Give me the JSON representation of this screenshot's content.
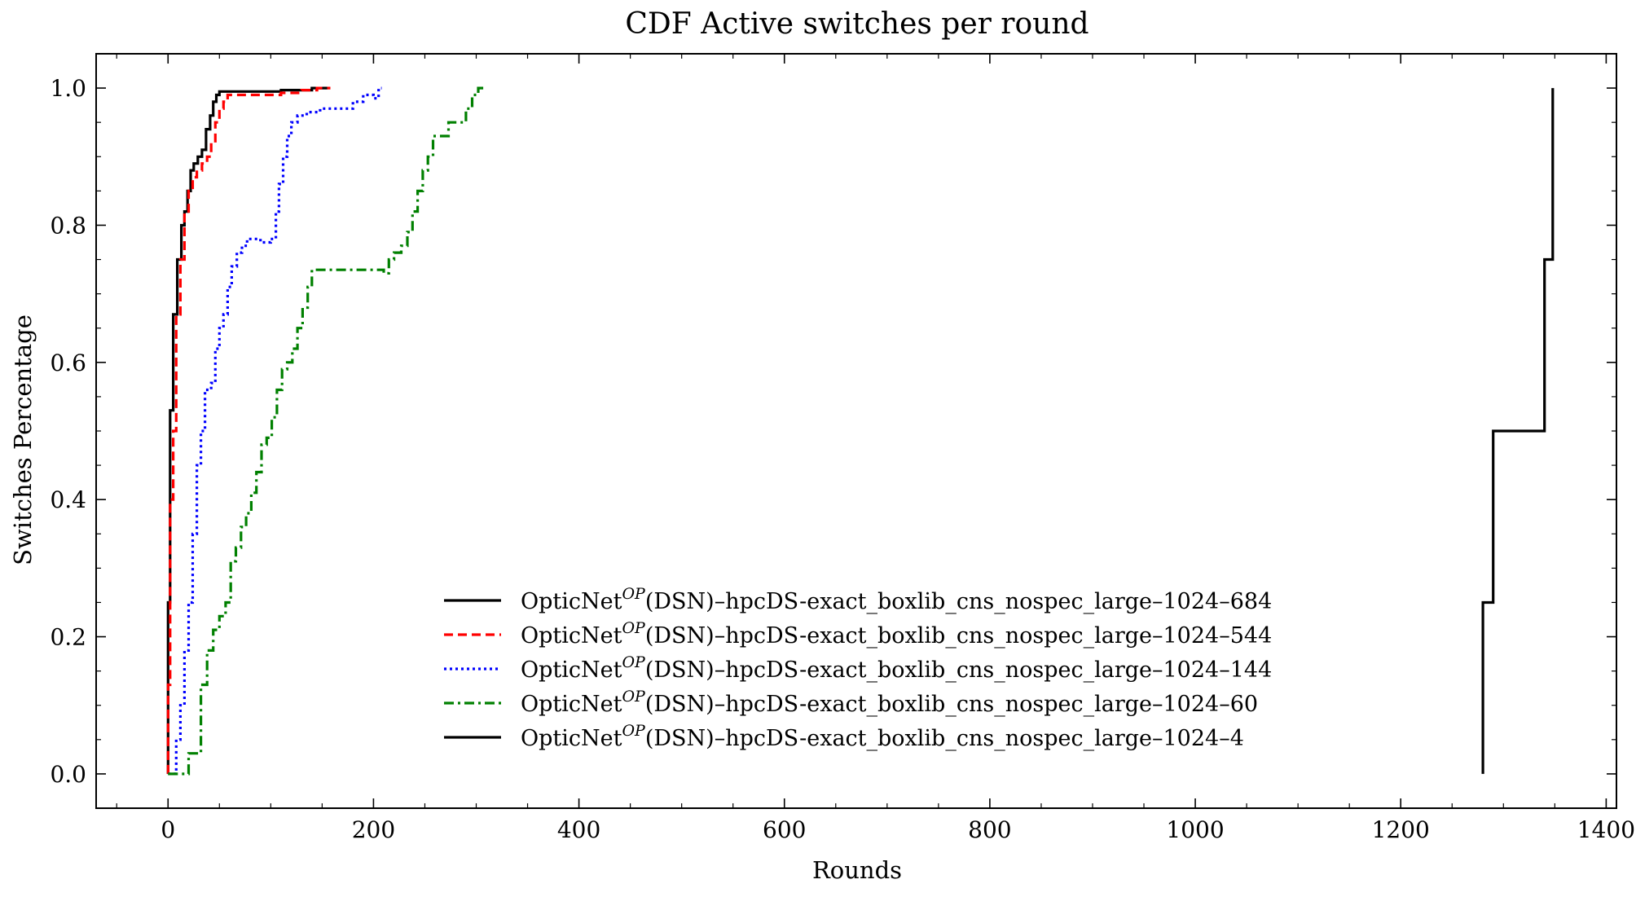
{
  "chart_data": {
    "type": "line",
    "title": "CDF Active switches per round",
    "xlabel": "Rounds",
    "ylabel": "Switches Percentage",
    "xlim": [
      -70,
      1410
    ],
    "ylim": [
      -0.05,
      1.05
    ],
    "xticks": [
      0,
      200,
      400,
      600,
      800,
      1000,
      1200,
      1400
    ],
    "xtick_labels": [
      "0",
      "200",
      "400",
      "600",
      "800",
      "1000",
      "1200",
      "1400"
    ],
    "yticks": [
      0.0,
      0.2,
      0.4,
      0.6,
      0.8,
      1.0
    ],
    "ytick_labels": [
      "0.0",
      "0.2",
      "0.4",
      "0.6",
      "0.8",
      "1.0"
    ],
    "grid": false,
    "legend_position": "lower-center",
    "series": [
      {
        "legend_prefix": "OpticNet",
        "legend_sup": "OP",
        "legend_suffix": "(DSN)–hpcDS-exact_boxlib_cns_nospec_large–1024–684",
        "color": "#000000",
        "dash": "solid",
        "points": [
          [
            0,
            0
          ],
          [
            0,
            0.25
          ],
          [
            2,
            0.25
          ],
          [
            2,
            0.53
          ],
          [
            5,
            0.53
          ],
          [
            5,
            0.67
          ],
          [
            9,
            0.67
          ],
          [
            9,
            0.75
          ],
          [
            13,
            0.75
          ],
          [
            13,
            0.8
          ],
          [
            16,
            0.8
          ],
          [
            16,
            0.82
          ],
          [
            19,
            0.82
          ],
          [
            19,
            0.85
          ],
          [
            22,
            0.85
          ],
          [
            22,
            0.88
          ],
          [
            25,
            0.88
          ],
          [
            25,
            0.89
          ],
          [
            29,
            0.89
          ],
          [
            29,
            0.9
          ],
          [
            33,
            0.9
          ],
          [
            33,
            0.91
          ],
          [
            37,
            0.91
          ],
          [
            37,
            0.94
          ],
          [
            41,
            0.94
          ],
          [
            41,
            0.96
          ],
          [
            44,
            0.96
          ],
          [
            44,
            0.98
          ],
          [
            47,
            0.98
          ],
          [
            47,
            0.99
          ],
          [
            50,
            0.99
          ],
          [
            50,
            0.995
          ],
          [
            60,
            0.995
          ],
          [
            80,
            0.995
          ],
          [
            110,
            0.995
          ],
          [
            110,
            0.997
          ],
          [
            140,
            0.997
          ],
          [
            140,
            1.0
          ],
          [
            155,
            1.0
          ]
        ]
      },
      {
        "legend_prefix": "OpticNet",
        "legend_sup": "OP",
        "legend_suffix": "(DSN)–hpcDS-exact_boxlib_cns_nospec_large–1024–544",
        "color": "#ff0000",
        "dash": "dashed",
        "points": [
          [
            0,
            0
          ],
          [
            0,
            0.13
          ],
          [
            2,
            0.13
          ],
          [
            2,
            0.4
          ],
          [
            5,
            0.4
          ],
          [
            5,
            0.5
          ],
          [
            8,
            0.5
          ],
          [
            8,
            0.67
          ],
          [
            12,
            0.67
          ],
          [
            12,
            0.75
          ],
          [
            16,
            0.75
          ],
          [
            16,
            0.82
          ],
          [
            20,
            0.82
          ],
          [
            20,
            0.85
          ],
          [
            24,
            0.85
          ],
          [
            24,
            0.87
          ],
          [
            28,
            0.87
          ],
          [
            28,
            0.88
          ],
          [
            33,
            0.88
          ],
          [
            33,
            0.89
          ],
          [
            38,
            0.89
          ],
          [
            38,
            0.9
          ],
          [
            42,
            0.9
          ],
          [
            42,
            0.92
          ],
          [
            46,
            0.92
          ],
          [
            46,
            0.95
          ],
          [
            50,
            0.95
          ],
          [
            50,
            0.97
          ],
          [
            54,
            0.97
          ],
          [
            54,
            0.98
          ],
          [
            58,
            0.98
          ],
          [
            58,
            0.99
          ],
          [
            70,
            0.99
          ],
          [
            110,
            0.99
          ],
          [
            110,
            0.993
          ],
          [
            130,
            0.993
          ],
          [
            130,
            0.997
          ],
          [
            145,
            0.997
          ],
          [
            145,
            1.0
          ],
          [
            158,
            1.0
          ]
        ]
      },
      {
        "legend_prefix": "OpticNet",
        "legend_sup": "OP",
        "legend_suffix": "(DSN)–hpcDS-exact_boxlib_cns_nospec_large–1024–144",
        "color": "#0000ff",
        "dash": "dotted",
        "points": [
          [
            0,
            0
          ],
          [
            8,
            0
          ],
          [
            8,
            0.05
          ],
          [
            12,
            0.05
          ],
          [
            12,
            0.1
          ],
          [
            16,
            0.1
          ],
          [
            16,
            0.18
          ],
          [
            20,
            0.18
          ],
          [
            20,
            0.25
          ],
          [
            24,
            0.25
          ],
          [
            24,
            0.35
          ],
          [
            28,
            0.35
          ],
          [
            28,
            0.45
          ],
          [
            32,
            0.45
          ],
          [
            32,
            0.5
          ],
          [
            36,
            0.5
          ],
          [
            36,
            0.56
          ],
          [
            42,
            0.56
          ],
          [
            42,
            0.57
          ],
          [
            46,
            0.57
          ],
          [
            46,
            0.62
          ],
          [
            50,
            0.62
          ],
          [
            50,
            0.65
          ],
          [
            54,
            0.65
          ],
          [
            54,
            0.67
          ],
          [
            58,
            0.67
          ],
          [
            58,
            0.71
          ],
          [
            62,
            0.71
          ],
          [
            62,
            0.74
          ],
          [
            67,
            0.74
          ],
          [
            67,
            0.76
          ],
          [
            72,
            0.76
          ],
          [
            72,
            0.77
          ],
          [
            77,
            0.77
          ],
          [
            77,
            0.78
          ],
          [
            90,
            0.78
          ],
          [
            90,
            0.775
          ],
          [
            100,
            0.775
          ],
          [
            100,
            0.78
          ],
          [
            105,
            0.78
          ],
          [
            105,
            0.82
          ],
          [
            108,
            0.82
          ],
          [
            108,
            0.86
          ],
          [
            112,
            0.86
          ],
          [
            112,
            0.9
          ],
          [
            116,
            0.9
          ],
          [
            116,
            0.93
          ],
          [
            120,
            0.93
          ],
          [
            120,
            0.95
          ],
          [
            126,
            0.95
          ],
          [
            126,
            0.96
          ],
          [
            135,
            0.96
          ],
          [
            135,
            0.965
          ],
          [
            148,
            0.965
          ],
          [
            148,
            0.97
          ],
          [
            180,
            0.97
          ],
          [
            180,
            0.98
          ],
          [
            190,
            0.98
          ],
          [
            190,
            0.99
          ],
          [
            200,
            0.99
          ],
          [
            200,
            0.985
          ],
          [
            205,
            0.985
          ],
          [
            205,
            1.0
          ],
          [
            208,
            1.0
          ]
        ]
      },
      {
        "legend_prefix": "OpticNet",
        "legend_sup": "OP",
        "legend_suffix": "(DSN)–hpcDS-exact_boxlib_cns_nospec_large–1024–60",
        "color": "#008000",
        "dash": "dashdot",
        "points": [
          [
            0,
            0
          ],
          [
            20,
            0
          ],
          [
            20,
            0.03
          ],
          [
            32,
            0.03
          ],
          [
            32,
            0.13
          ],
          [
            38,
            0.13
          ],
          [
            38,
            0.18
          ],
          [
            44,
            0.18
          ],
          [
            44,
            0.21
          ],
          [
            50,
            0.21
          ],
          [
            50,
            0.23
          ],
          [
            56,
            0.23
          ],
          [
            56,
            0.25
          ],
          [
            61,
            0.25
          ],
          [
            61,
            0.31
          ],
          [
            66,
            0.31
          ],
          [
            66,
            0.33
          ],
          [
            71,
            0.33
          ],
          [
            71,
            0.36
          ],
          [
            76,
            0.36
          ],
          [
            76,
            0.38
          ],
          [
            81,
            0.38
          ],
          [
            81,
            0.41
          ],
          [
            86,
            0.41
          ],
          [
            86,
            0.44
          ],
          [
            91,
            0.44
          ],
          [
            91,
            0.48
          ],
          [
            96,
            0.48
          ],
          [
            96,
            0.49
          ],
          [
            101,
            0.49
          ],
          [
            101,
            0.52
          ],
          [
            106,
            0.52
          ],
          [
            106,
            0.56
          ],
          [
            111,
            0.56
          ],
          [
            111,
            0.59
          ],
          [
            116,
            0.59
          ],
          [
            116,
            0.6
          ],
          [
            121,
            0.6
          ],
          [
            121,
            0.62
          ],
          [
            126,
            0.62
          ],
          [
            126,
            0.65
          ],
          [
            131,
            0.65
          ],
          [
            131,
            0.68
          ],
          [
            136,
            0.68
          ],
          [
            136,
            0.71
          ],
          [
            140,
            0.71
          ],
          [
            140,
            0.735
          ],
          [
            210,
            0.735
          ],
          [
            210,
            0.73
          ],
          [
            215,
            0.73
          ],
          [
            215,
            0.75
          ],
          [
            220,
            0.75
          ],
          [
            220,
            0.76
          ],
          [
            227,
            0.76
          ],
          [
            227,
            0.77
          ],
          [
            233,
            0.77
          ],
          [
            233,
            0.79
          ],
          [
            238,
            0.79
          ],
          [
            238,
            0.82
          ],
          [
            243,
            0.82
          ],
          [
            243,
            0.85
          ],
          [
            248,
            0.85
          ],
          [
            248,
            0.88
          ],
          [
            253,
            0.88
          ],
          [
            253,
            0.9
          ],
          [
            258,
            0.9
          ],
          [
            258,
            0.93
          ],
          [
            273,
            0.93
          ],
          [
            273,
            0.95
          ],
          [
            290,
            0.95
          ],
          [
            290,
            0.97
          ],
          [
            296,
            0.97
          ],
          [
            296,
            0.99
          ],
          [
            302,
            0.99
          ],
          [
            302,
            1.0
          ],
          [
            308,
            1.0
          ]
        ]
      },
      {
        "legend_prefix": "OpticNet",
        "legend_sup": "OP",
        "legend_suffix": "(DSN)–hpcDS-exact_boxlib_cns_nospec_large–1024–4",
        "color": "#000000",
        "dash": "solid",
        "points": [
          [
            1280,
            0
          ],
          [
            1280,
            0.25
          ],
          [
            1290,
            0.25
          ],
          [
            1290,
            0.5
          ],
          [
            1340,
            0.5
          ],
          [
            1340,
            0.75
          ],
          [
            1348,
            0.75
          ],
          [
            1348,
            1.0
          ]
        ]
      }
    ]
  }
}
